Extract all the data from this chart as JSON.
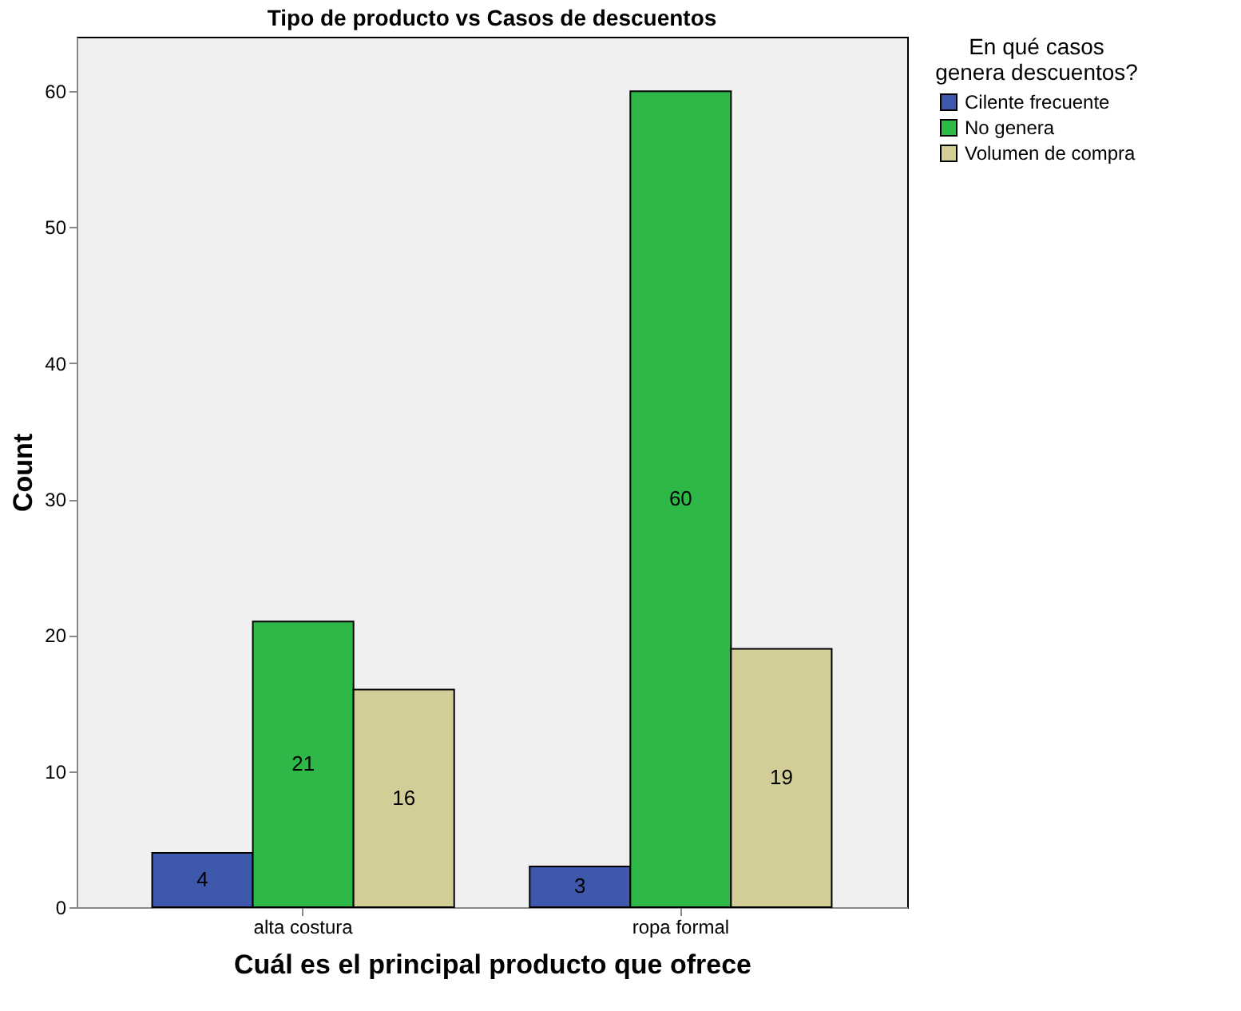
{
  "chart_data": {
    "type": "bar",
    "title": "Tipo de producto vs Casos de descuentos",
    "xlabel": "Cuál es el principal producto que ofrece",
    "ylabel": "Count",
    "legend_title": "En qué casos genera descuentos?",
    "categories": [
      "alta costura",
      "ropa formal"
    ],
    "series": [
      {
        "name": "Cilente frecuente",
        "color": "#3e58ac",
        "values": [
          4,
          3
        ]
      },
      {
        "name": "No genera",
        "color": "#2eb848",
        "values": [
          21,
          60
        ]
      },
      {
        "name": "Volumen de compra",
        "color": "#d3ce97",
        "values": [
          16,
          19
        ]
      }
    ],
    "ylim": [
      0,
      64
    ],
    "yticks": [
      0,
      10,
      20,
      30,
      40,
      50,
      60
    ],
    "grid": false,
    "legend": "top right",
    "data_labels": true
  }
}
